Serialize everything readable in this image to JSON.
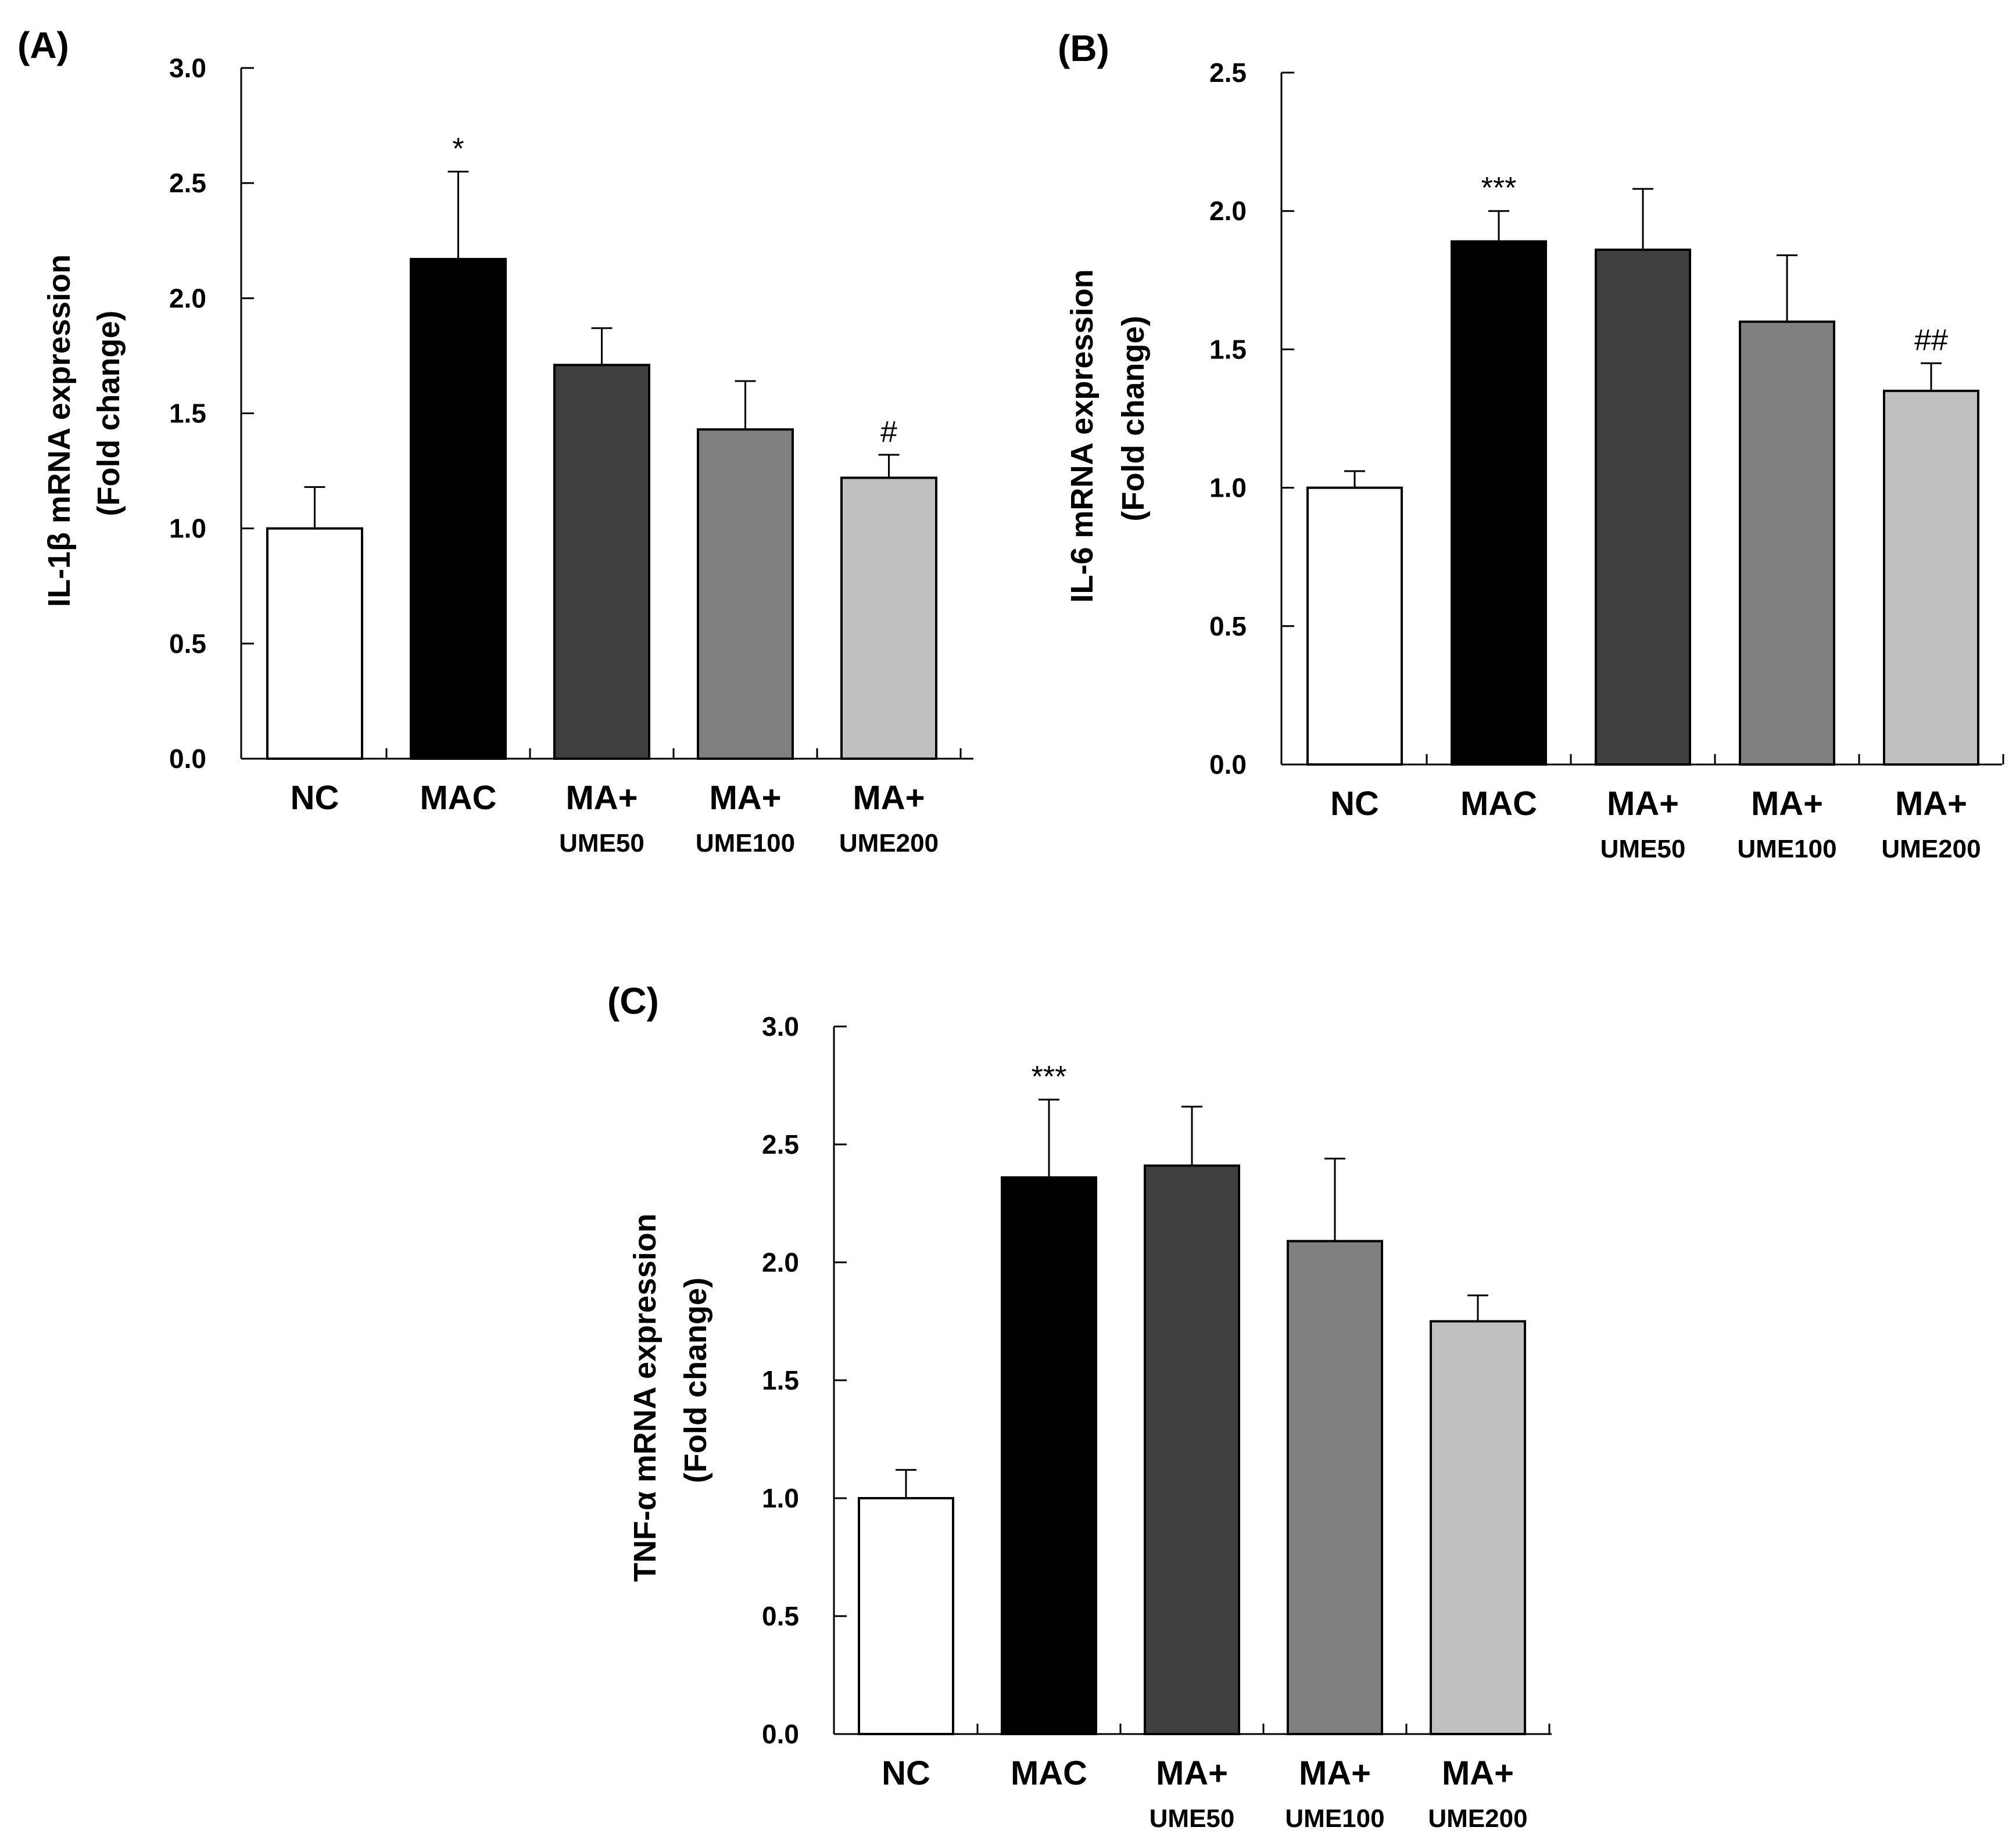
{
  "chart_data": [
    {
      "panel": "(A)",
      "type": "bar",
      "ylabel_line1": "IL-1β mRNA expression",
      "ylabel_line2": "(Fold change)",
      "ylim": [
        0,
        3.0
      ],
      "yticks": [
        "0.0",
        "0.5",
        "1.0",
        "1.5",
        "2.0",
        "2.5",
        "3.0"
      ],
      "categories": [
        {
          "main": "NC",
          "sub": ""
        },
        {
          "main": "MAC",
          "sub": ""
        },
        {
          "main": "MA+",
          "sub": "UME50"
        },
        {
          "main": "MA+",
          "sub": "UME100"
        },
        {
          "main": "MA+",
          "sub": "UME200"
        }
      ],
      "values": [
        1.0,
        2.17,
        1.71,
        1.43,
        1.22
      ],
      "errors": [
        0.18,
        0.38,
        0.16,
        0.21,
        0.1
      ],
      "annotations": [
        "",
        "*",
        "",
        "",
        "#"
      ],
      "colors": [
        "#ffffff",
        "#000000",
        "#404040",
        "#808080",
        "#c0c0c0"
      ]
    },
    {
      "panel": "(B)",
      "type": "bar",
      "ylabel_line1": "IL-6 mRNA expression",
      "ylabel_line2": "(Fold change)",
      "ylim": [
        0,
        2.5
      ],
      "yticks": [
        "0.0",
        "0.5",
        "1.0",
        "1.5",
        "2.0",
        "2.5"
      ],
      "categories": [
        {
          "main": "NC",
          "sub": ""
        },
        {
          "main": "MAC",
          "sub": ""
        },
        {
          "main": "MA+",
          "sub": "UME50"
        },
        {
          "main": "MA+",
          "sub": "UME100"
        },
        {
          "main": "MA+",
          "sub": "UME200"
        }
      ],
      "values": [
        1.0,
        1.89,
        1.86,
        1.6,
        1.35
      ],
      "errors": [
        0.06,
        0.11,
        0.22,
        0.24,
        0.1
      ],
      "annotations": [
        "",
        "***",
        "",
        "",
        "##"
      ],
      "colors": [
        "#ffffff",
        "#000000",
        "#404040",
        "#808080",
        "#c0c0c0"
      ]
    },
    {
      "panel": "(C)",
      "type": "bar",
      "ylabel_line1": "TNF-α mRNA expression",
      "ylabel_line2": "(Fold change)",
      "ylim": [
        0,
        3.0
      ],
      "yticks": [
        "0.0",
        "0.5",
        "1.0",
        "1.5",
        "2.0",
        "2.5",
        "3.0"
      ],
      "categories": [
        {
          "main": "NC",
          "sub": ""
        },
        {
          "main": "MAC",
          "sub": ""
        },
        {
          "main": "MA+",
          "sub": "UME50"
        },
        {
          "main": "MA+",
          "sub": "UME100"
        },
        {
          "main": "MA+",
          "sub": "UME200"
        }
      ],
      "values": [
        1.0,
        2.36,
        2.41,
        2.09,
        1.75
      ],
      "errors": [
        0.12,
        0.33,
        0.25,
        0.35,
        0.11
      ],
      "annotations": [
        "",
        "***",
        "",
        "",
        ""
      ],
      "colors": [
        "#ffffff",
        "#000000",
        "#404040",
        "#808080",
        "#c0c0c0"
      ]
    }
  ]
}
